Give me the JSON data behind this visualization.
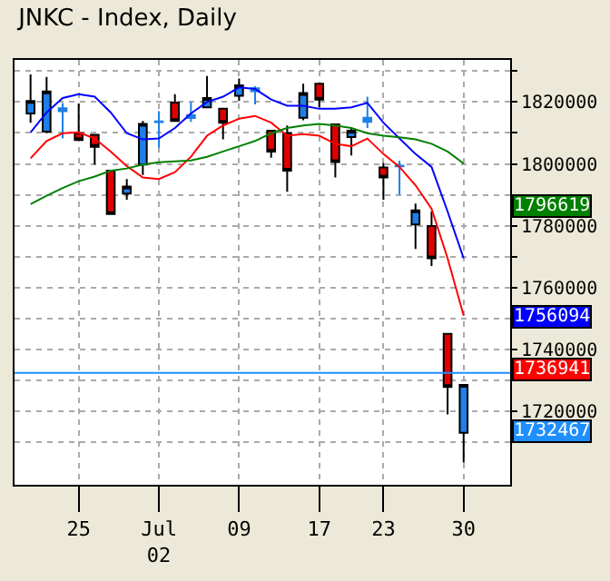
{
  "chart_data": {
    "type": "candlestick",
    "title": "JNKC - Index, Daily",
    "categories": [
      null,
      null,
      null,
      "25",
      null,
      null,
      null,
      null,
      "Jul\n02",
      null,
      null,
      null,
      null,
      "09",
      null,
      null,
      null,
      null,
      "17",
      null,
      null,
      null,
      "23",
      null,
      null,
      null,
      null,
      "30"
    ],
    "ohlc": [
      [
        1816300,
        1828900,
        1813300,
        1820300
      ],
      [
        1810400,
        1828100,
        1809900,
        1823400
      ],
      [
        1817000,
        1819700,
        1808200,
        1818000
      ],
      [
        1809900,
        1819500,
        1807400,
        1807700
      ],
      [
        1809400,
        1809400,
        1799800,
        1805500
      ],
      [
        1797800,
        1798000,
        1783700,
        1783800
      ],
      [
        1790400,
        1795100,
        1788400,
        1792700
      ],
      [
        1799800,
        1813900,
        1796400,
        1812900
      ],
      [
        1813500,
        1817000,
        1805200,
        1813700
      ],
      [
        1819800,
        1822500,
        1813600,
        1813900
      ],
      [
        1814800,
        1820000,
        1813600,
        1815800
      ],
      [
        1818300,
        1828400,
        1818000,
        1821300
      ],
      [
        1817800,
        1817800,
        1807900,
        1813300
      ],
      [
        1822000,
        1827600,
        1820300,
        1825400
      ],
      [
        1823500,
        1825100,
        1819200,
        1824400
      ],
      [
        1810700,
        1810700,
        1802000,
        1804000
      ],
      [
        1809900,
        1812400,
        1791000,
        1797800
      ],
      [
        1814900,
        1825900,
        1814100,
        1822900
      ],
      [
        1825900,
        1825900,
        1818300,
        1820800
      ],
      [
        1812800,
        1812800,
        1795600,
        1800600
      ],
      [
        1808700,
        1811900,
        1802700,
        1810700
      ],
      [
        1813600,
        1821700,
        1811600,
        1814900
      ],
      [
        1798800,
        1800300,
        1788400,
        1795600
      ],
      [
        1799200,
        1801000,
        1790000,
        1799400
      ],
      [
        1780400,
        1787200,
        1772500,
        1785000
      ],
      [
        1779900,
        1784600,
        1767000,
        1769500
      ],
      [
        1745100,
        1745100,
        1719000,
        1727900
      ],
      [
        1713100,
        1728600,
        1703500,
        1728600
      ]
    ],
    "colors": [
      "#1e7fe8",
      "#1e7fe8",
      "#1e7fe8",
      "#e00000",
      "#e00000",
      "#e00000",
      "#1e7fe8",
      "#1e7fe8",
      "#1e7fe8",
      "#e00000",
      "#1e7fe8",
      "#1e7fe8",
      "#e00000",
      "#1e7fe8",
      "#1e7fe8",
      "#e00000",
      "#e00000",
      "#1e7fe8",
      "#e00000",
      "#e00000",
      "#1e7fe8",
      "#1e7fe8",
      "#e00000",
      "#1e7fe8",
      "#1e7fe8",
      "#e00000",
      "#e00000",
      "#1e7fe8"
    ],
    "series": [
      {
        "type": "line",
        "color": "#0000ff",
        "values": [
          1810200,
          1816600,
          1821300,
          1822500,
          1821700,
          1816600,
          1809900,
          1807900,
          1808200,
          1811600,
          1816300,
          1820000,
          1821700,
          1824700,
          1824200,
          1820800,
          1818800,
          1818800,
          1817800,
          1817800,
          1818300,
          1819700,
          1813300,
          1808200,
          1803200,
          1799000,
          1784600,
          1769500
        ]
      },
      {
        "type": "line",
        "color": "#ff0000",
        "values": [
          1801800,
          1807400,
          1809900,
          1810200,
          1808200,
          1804000,
          1799300,
          1795600,
          1795100,
          1797300,
          1802300,
          1809100,
          1812400,
          1814600,
          1815500,
          1813300,
          1809100,
          1809600,
          1809100,
          1806500,
          1805700,
          1808200,
          1803200,
          1799000,
          1793100,
          1785500,
          1769500,
          1751000
        ]
      },
      {
        "type": "line",
        "color": "#008000",
        "values": [
          1787000,
          1789700,
          1792200,
          1794400,
          1795900,
          1797800,
          1798500,
          1799800,
          1800500,
          1800800,
          1801100,
          1802300,
          1804000,
          1805700,
          1807400,
          1809900,
          1811600,
          1812400,
          1812900,
          1812400,
          1811600,
          1809900,
          1809100,
          1808600,
          1807900,
          1806500,
          1804000,
          1800100
        ]
      }
    ],
    "ylim": [
      1696300,
      1833600
    ],
    "yticks": [
      {
        "value": 1710000,
        "label": null
      },
      1720000,
      {
        "value": 1730000,
        "label": null
      },
      1740000,
      {
        "value": 1750000,
        "label": null
      },
      1760000,
      {
        "value": 1770000,
        "label": null
      },
      1780000,
      {
        "value": 1790000,
        "label": null
      },
      1800000,
      {
        "value": 1810000,
        "label": null
      },
      1820000,
      {
        "value": 1830000,
        "label": null
      }
    ],
    "ref_lines": [
      {
        "axis": "y",
        "value": 1732467,
        "color": "#1e8fff"
      }
    ],
    "annotations": [
      "1756094",
      "1736941",
      "1796619",
      "1732467"
    ],
    "grid": true,
    "marker": "none",
    "line_style": "solid"
  }
}
